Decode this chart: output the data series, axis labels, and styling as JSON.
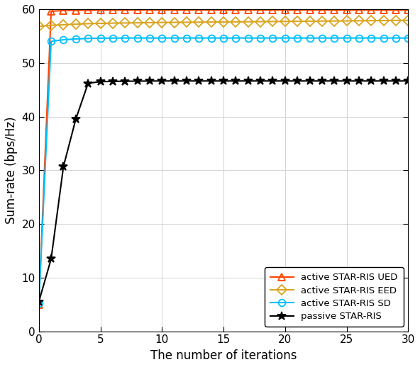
{
  "title": "",
  "xlabel": "The number of iterations",
  "ylabel": "Sum-rate (bps/Hz)",
  "xlim": [
    0,
    30
  ],
  "ylim": [
    0,
    60
  ],
  "xticks": [
    0,
    5,
    10,
    15,
    20,
    25,
    30
  ],
  "yticks": [
    0,
    10,
    20,
    30,
    40,
    50,
    60
  ],
  "series": [
    {
      "label": "active STAR-RIS UED",
      "color": "#FF4500",
      "marker": "^",
      "markersize": 7,
      "linewidth": 1.5,
      "x": [
        0,
        1,
        2,
        3,
        4,
        5,
        6,
        7,
        8,
        9,
        10,
        11,
        12,
        13,
        14,
        15,
        16,
        17,
        18,
        19,
        20,
        21,
        22,
        23,
        24,
        25,
        26,
        27,
        28,
        29,
        30
      ],
      "y": [
        5.0,
        59.6,
        59.75,
        59.78,
        59.8,
        59.82,
        59.83,
        59.84,
        59.84,
        59.84,
        59.84,
        59.84,
        59.84,
        59.84,
        59.84,
        59.84,
        59.84,
        59.84,
        59.84,
        59.84,
        59.84,
        59.84,
        59.84,
        59.84,
        59.84,
        59.84,
        59.84,
        59.84,
        59.84,
        59.84,
        59.84
      ]
    },
    {
      "label": "active STAR-RIS EED",
      "color": "#DAA520",
      "marker": "D",
      "markersize": 7,
      "linewidth": 1.5,
      "x": [
        0,
        1,
        2,
        3,
        4,
        5,
        6,
        7,
        8,
        9,
        10,
        11,
        12,
        13,
        14,
        15,
        16,
        17,
        18,
        19,
        20,
        21,
        22,
        23,
        24,
        25,
        26,
        27,
        28,
        29,
        30
      ],
      "y": [
        56.8,
        57.0,
        57.1,
        57.2,
        57.3,
        57.35,
        57.4,
        57.43,
        57.46,
        57.49,
        57.52,
        57.54,
        57.56,
        57.58,
        57.6,
        57.62,
        57.64,
        57.66,
        57.68,
        57.7,
        57.72,
        57.74,
        57.76,
        57.78,
        57.8,
        57.82,
        57.84,
        57.86,
        57.88,
        57.9,
        57.92
      ]
    },
    {
      "label": "active STAR-RIS SD",
      "color": "#00BFFF",
      "marker": "o",
      "markersize": 7,
      "linewidth": 1.5,
      "x": [
        0,
        1,
        2,
        3,
        4,
        5,
        6,
        7,
        8,
        9,
        10,
        11,
        12,
        13,
        14,
        15,
        16,
        17,
        18,
        19,
        20,
        21,
        22,
        23,
        24,
        25,
        26,
        27,
        28,
        29,
        30
      ],
      "y": [
        5.2,
        54.0,
        54.3,
        54.45,
        54.55,
        54.6,
        54.62,
        54.63,
        54.63,
        54.63,
        54.63,
        54.63,
        54.63,
        54.63,
        54.63,
        54.63,
        54.63,
        54.63,
        54.63,
        54.63,
        54.63,
        54.63,
        54.63,
        54.63,
        54.63,
        54.63,
        54.63,
        54.63,
        54.63,
        54.63,
        54.63
      ]
    },
    {
      "label": "passive STAR-RIS",
      "color": "#000000",
      "marker": "*",
      "markersize": 9,
      "linewidth": 1.5,
      "x": [
        0,
        1,
        2,
        3,
        4,
        5,
        6,
        7,
        8,
        9,
        10,
        11,
        12,
        13,
        14,
        15,
        16,
        17,
        18,
        19,
        20,
        21,
        22,
        23,
        24,
        25,
        26,
        27,
        28,
        29,
        30
      ],
      "y": [
        5.5,
        13.5,
        30.7,
        39.5,
        46.2,
        46.5,
        46.55,
        46.58,
        46.6,
        46.62,
        46.63,
        46.63,
        46.63,
        46.63,
        46.63,
        46.63,
        46.63,
        46.63,
        46.63,
        46.63,
        46.63,
        46.63,
        46.63,
        46.63,
        46.63,
        46.63,
        46.63,
        46.63,
        46.63,
        46.63,
        46.63
      ]
    }
  ],
  "legend_loc": "lower right",
  "grid": true
}
